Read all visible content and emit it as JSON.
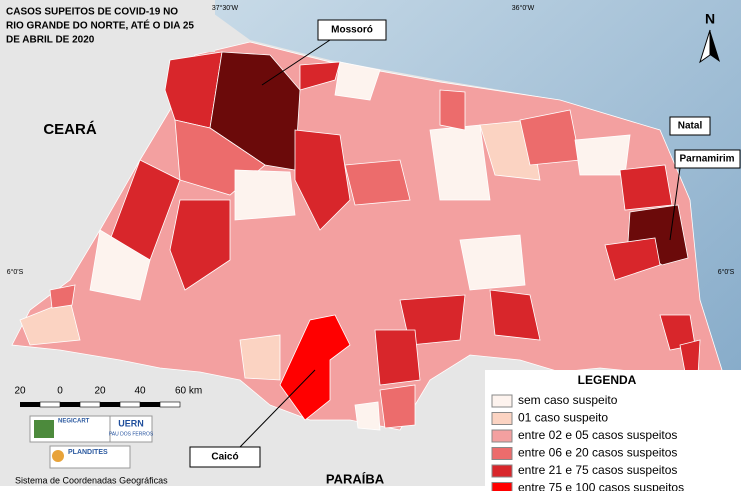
{
  "header": {
    "title_lines": [
      "CASOS SUPEITOS DE COVID-19 NO",
      "RIO GRANDE DO NORTE, ATÉ O DIA 25",
      "DE ABRIL DE 2020"
    ]
  },
  "coordinates": {
    "top": [
      "37°30'W",
      "36°0'W"
    ],
    "side": [
      "6°0'S",
      "6°0'S"
    ]
  },
  "north": "N",
  "places": {
    "states": [
      "CEARÁ",
      "PARAÍBA"
    ],
    "cities": [
      "Mossoró",
      "Natal",
      "Parnamirim",
      "Caicó"
    ]
  },
  "legend": {
    "title": "LEGENDA",
    "items": [
      {
        "label": "sem caso suspeito",
        "color": "#fdf3ee"
      },
      {
        "label": "01 caso suspeito",
        "color": "#fbd3c2"
      },
      {
        "label": "entre 02 e 05 casos suspeitos",
        "color": "#f3a0a0"
      },
      {
        "label": "entre 06 e 20 casos suspeitos",
        "color": "#ec6c6c"
      },
      {
        "label": "entre 21 e 75 casos suspeitos",
        "color": "#d8262b"
      },
      {
        "label": "entre 75 e 100 casos suspeitos",
        "color": "#ff0000"
      }
    ]
  },
  "scale_bar": {
    "labels": [
      "20",
      "0",
      "20",
      "40",
      "60 km"
    ]
  },
  "logos": [
    "NEGICART",
    "UERN",
    "PAU DOS FERROS",
    "PLANDITES"
  ],
  "footer": "Sistema de Coordenadas Geográficas"
}
